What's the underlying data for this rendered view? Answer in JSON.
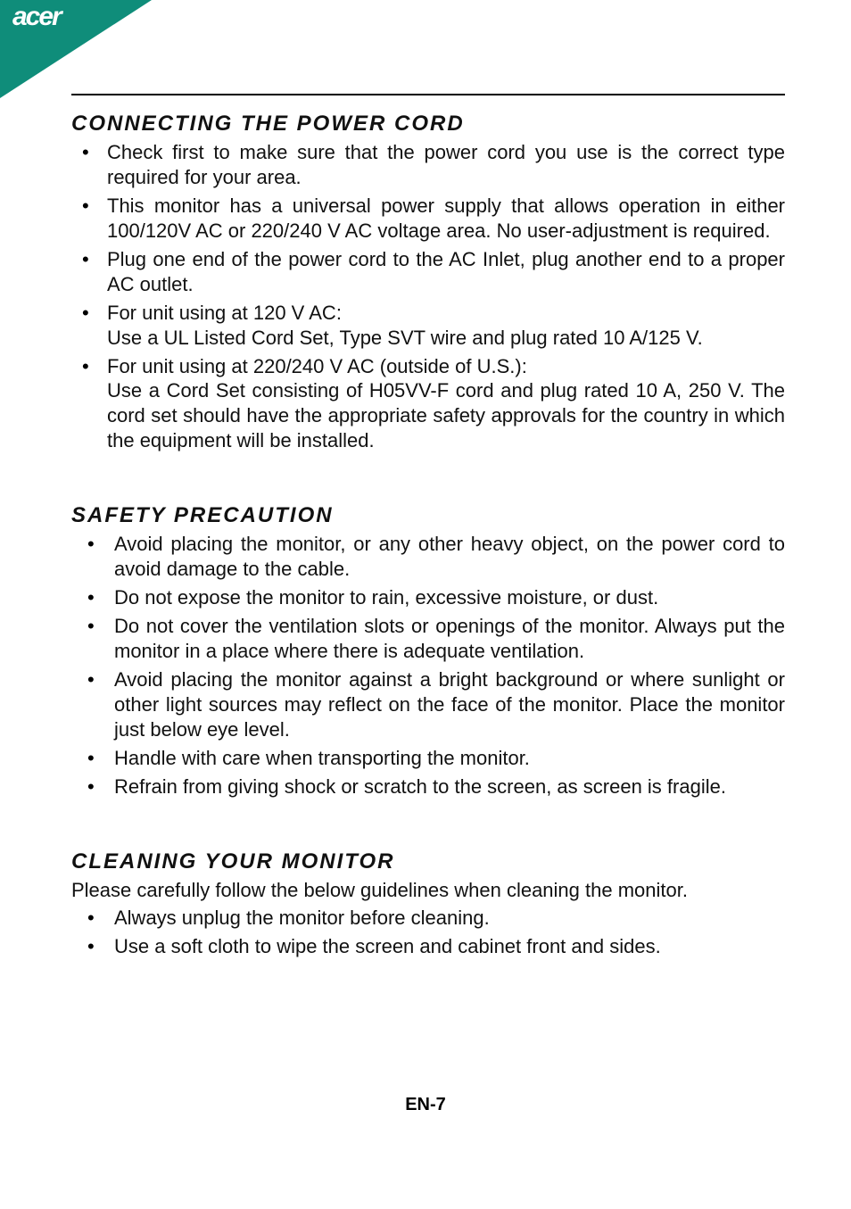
{
  "brand": {
    "logo_text": "acer"
  },
  "colors": {
    "badge": "#0f8d7a",
    "text": "#111111",
    "logo_text": "#ffffff",
    "rule": "#000000",
    "background": "#ffffff"
  },
  "page_number": "EN-7",
  "sections": [
    {
      "title": "CONNECTING THE POWER CORD",
      "intro": null,
      "indent": false,
      "items": [
        "Check first to make sure that the power cord you use is the correct type required for your area.",
        "This monitor has a universal power supply that allows operation in either 100/120V AC or 220/240 V AC voltage area. No user-adjustment is required.",
        "Plug one end of the power cord to the AC Inlet, plug another end to a proper AC outlet.",
        "For unit using at 120 V AC:\nUse a UL Listed Cord Set, Type SVT wire and plug rated 10 A/125 V.",
        "For unit using at 220/240 V AC (outside of U.S.):\nUse a Cord Set consisting of H05VV-F cord and plug rated 10 A, 250 V. The cord set should have the appropriate safety approvals for the country in which the equipment will be installed."
      ]
    },
    {
      "title": "SAFETY PRECAUTION",
      "intro": null,
      "indent": true,
      "items": [
        "Avoid placing the monitor, or any other heavy object, on the power cord to avoid damage to the cable.",
        "Do not expose the monitor to rain, excessive moisture, or dust.",
        "Do not cover the ventilation slots or openings of the monitor. Always put the monitor in a place where there is adequate ventilation.",
        "Avoid placing the monitor against a bright background or where sunlight or other light sources may reflect on the face of the monitor. Place the monitor just below eye level.",
        "Handle with care when transporting the monitor.",
        "Refrain from giving shock or scratch to the screen, as screen is fragile."
      ]
    },
    {
      "title": "CLEANING YOUR MONITOR",
      "intro": "Please carefully follow the below guidelines when cleaning the monitor.",
      "indent": true,
      "items": [
        "Always unplug the monitor before cleaning.",
        "Use a soft cloth to wipe the screen and cabinet front and sides."
      ]
    }
  ]
}
